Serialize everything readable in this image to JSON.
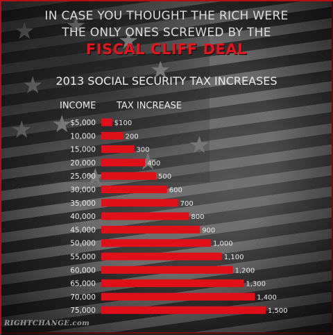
{
  "headline": {
    "line1": "IN CASE YOU THOUGHT THE RICH WERE",
    "line2": "THE ONLY ONES SCREWED BY THE",
    "line3": "FISCAL CLIFF DEAL"
  },
  "colors": {
    "bar": "#e01018",
    "accent": "#e8141c",
    "text": "#ececec"
  },
  "chart_data": {
    "type": "bar",
    "orientation": "horizontal",
    "title": "2013 SOCIAL SECURITY TAX INCREASES",
    "category_header": "INCOME",
    "value_header": "TAX INCREASE",
    "categories": [
      "$5,000",
      "10,000",
      "15,000",
      "20,000",
      "25,000",
      "30,000",
      "35,000",
      "40,000",
      "45,000",
      "50,000",
      "55,000",
      "60,000",
      "65,000",
      "70,000",
      "75,000"
    ],
    "values": [
      100,
      200,
      300,
      400,
      500,
      600,
      700,
      800,
      900,
      1000,
      1100,
      1200,
      1300,
      1400,
      1500
    ],
    "value_labels": [
      "$100",
      "200",
      "300",
      "400",
      "500",
      "600",
      "700",
      "800",
      "900",
      "1,000",
      "1,100",
      "1,200",
      "1,300",
      "1,400",
      "1,500"
    ],
    "xlim": [
      0,
      1500
    ],
    "grid": false,
    "legend": "none"
  },
  "watermark": "RIGHTCHANGE.com"
}
